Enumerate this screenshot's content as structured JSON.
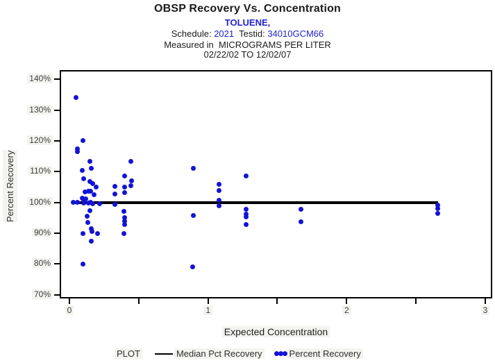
{
  "header": {
    "title": "OBSP Recovery Vs. Concentration",
    "analyte": "TOLUENE,",
    "schedule_label": "Schedule:",
    "schedule_value": "2021",
    "testid_label": "Testid:",
    "testid_value": "34010GCM66",
    "measured_line": "Measured in  MICROGRAMS PER LITER",
    "date_range": "02/22/02 TO 12/02/07"
  },
  "colors": {
    "accent_blue": "#2222cc",
    "point_blue": "#1313d6",
    "line_black": "#000000"
  },
  "legend": {
    "plot_label": "PLOT",
    "series": [
      {
        "label": "Median Pct Recovery",
        "swatch": "line"
      },
      {
        "label": "Percent Recovery",
        "swatch": "dots"
      }
    ]
  },
  "chart_data": {
    "type": "scatter",
    "title": "OBSP Recovery Vs. Concentration",
    "subtitle": "TOLUENE, Schedule: 2021 Testid: 34010GCM66, Measured in MICROGRAMS PER LITER, 02/22/02 TO 12/02/07",
    "xlabel": "Expected Concentration",
    "ylabel": "Percent Recovery",
    "xlim": [
      -0.07,
      3.05
    ],
    "ylim": [
      68.8,
      143.0
    ],
    "xtick_values": [
      0,
      1,
      2,
      3
    ],
    "xtick_labels": [
      "0",
      "1",
      "2",
      "3"
    ],
    "xminor_values": [
      0.5,
      1.5,
      2.5
    ],
    "ytick_values": [
      140,
      130,
      120,
      110,
      100,
      90,
      80,
      70
    ],
    "ytick_labels": [
      "140%",
      "130%",
      "120%",
      "110%",
      "100%",
      "90%",
      "80%",
      "70%"
    ],
    "grid": false,
    "legend_position": "bottom",
    "median_line": {
      "y": 100,
      "x_start": 0.02,
      "x_end": 2.66
    },
    "points": [
      [
        0.05,
        134.0
      ],
      [
        0.1,
        120.0
      ],
      [
        0.06,
        117.5
      ],
      [
        0.06,
        116.4
      ],
      [
        0.15,
        113.4
      ],
      [
        0.16,
        111.1
      ],
      [
        0.095,
        110.4
      ],
      [
        0.103,
        107.7
      ],
      [
        0.148,
        106.7
      ],
      [
        0.17,
        106.2
      ],
      [
        0.195,
        104.9
      ],
      [
        0.136,
        103.7
      ],
      [
        0.153,
        103.7
      ],
      [
        0.111,
        103.5
      ],
      [
        0.18,
        102.5
      ],
      [
        0.095,
        101.5
      ],
      [
        0.12,
        101.1
      ],
      [
        0.028,
        100.0
      ],
      [
        0.06,
        100.0
      ],
      [
        0.105,
        100.7
      ],
      [
        0.103,
        99.8
      ],
      [
        0.14,
        99.8
      ],
      [
        0.155,
        100.1
      ],
      [
        0.17,
        99.6
      ],
      [
        0.22,
        99.5
      ],
      [
        0.15,
        97.4
      ],
      [
        0.127,
        95.6
      ],
      [
        0.135,
        93.4
      ],
      [
        0.16,
        91.5
      ],
      [
        0.163,
        90.5
      ],
      [
        0.205,
        90.0
      ],
      [
        0.097,
        89.8
      ],
      [
        0.16,
        87.5
      ],
      [
        0.097,
        79.9
      ],
      [
        0.327,
        105.2
      ],
      [
        0.33,
        102.7
      ],
      [
        0.327,
        99.4
      ],
      [
        0.442,
        113.3
      ],
      [
        0.4,
        108.5
      ],
      [
        0.447,
        107.1
      ],
      [
        0.442,
        105.4
      ],
      [
        0.4,
        105.1
      ],
      [
        0.4,
        103.1
      ],
      [
        0.394,
        97.2
      ],
      [
        0.397,
        95.1
      ],
      [
        0.397,
        93.9
      ],
      [
        0.397,
        92.8
      ],
      [
        0.394,
        89.8
      ],
      [
        0.894,
        111.1
      ],
      [
        0.894,
        95.7
      ],
      [
        0.89,
        79.0
      ],
      [
        1.077,
        106.0
      ],
      [
        1.077,
        103.9
      ],
      [
        1.077,
        100.7
      ],
      [
        1.077,
        98.9
      ],
      [
        1.275,
        108.6
      ],
      [
        1.275,
        97.7
      ],
      [
        1.275,
        96.2
      ],
      [
        1.275,
        95.2
      ],
      [
        1.275,
        92.9
      ],
      [
        1.67,
        97.7
      ],
      [
        1.67,
        93.7
      ],
      [
        2.655,
        99.1
      ],
      [
        2.655,
        97.9
      ],
      [
        2.655,
        96.5
      ]
    ]
  }
}
